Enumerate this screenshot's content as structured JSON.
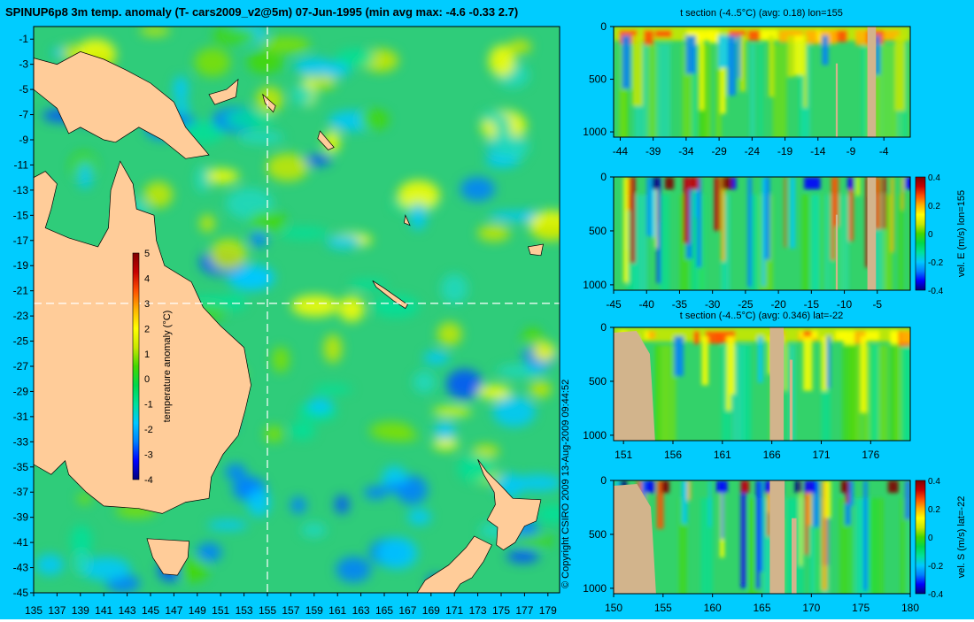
{
  "page": {
    "background": "#00ccff",
    "copyright": "© Copyright CSIRO 2009   13-Aug-2009 09:44:52"
  },
  "colormap": [
    "#00007a",
    "#0000ff",
    "#007fff",
    "#00c8ff",
    "#00e09a",
    "#00d84a",
    "#44d800",
    "#c8e800",
    "#ffff00",
    "#ffb400",
    "#ff5000",
    "#c80000",
    "#800000"
  ],
  "colors": {
    "land": "#ffcc99",
    "section_land": "#d2b48c",
    "ocean_base": "#2fcc7a",
    "crosshair": "#ffffff"
  },
  "chart_data": [
    {
      "type": "heatmap",
      "title": "SPINUP6p8 3m temp. anomaly (T- cars2009_v2@5m) 07-Jun-1995 (min avg max: -4.6 -0.33 2.7)",
      "xlabel": "",
      "ylabel": "",
      "xlim": [
        135,
        180
      ],
      "ylim": [
        -45,
        0
      ],
      "x_ticks": [
        "135",
        "137",
        "139",
        "141",
        "143",
        "145",
        "147",
        "149",
        "151",
        "153",
        "155",
        "157",
        "159",
        "161",
        "163",
        "165",
        "167",
        "169",
        "171",
        "173",
        "175",
        "177",
        "179"
      ],
      "y_ticks": [
        "-1",
        "-3",
        "-5",
        "-7",
        "-9",
        "-11",
        "-13",
        "-15",
        "-17",
        "-19",
        "-21",
        "-23",
        "-25",
        "-27",
        "-29",
        "-31",
        "-33",
        "-35",
        "-37",
        "-39",
        "-41",
        "-43",
        "-45"
      ],
      "stats": {
        "min": -4.6,
        "avg": -0.33,
        "max": 2.7
      },
      "crosshair": {
        "lon": 155,
        "lat": -22
      },
      "colorbar": {
        "label": "temperature anomaly (°C)",
        "min": -4,
        "max": 5,
        "ticks": [
          "5",
          "4",
          "3",
          "2",
          "1",
          "0",
          "-1",
          "-2",
          "-3",
          "-4"
        ]
      }
    },
    {
      "type": "heatmap",
      "title": "t section (-4..5°C) (avg: 0.18) lon=155",
      "xlim": [
        -45,
        0
      ],
      "ylim": [
        1050,
        0
      ],
      "x_ticks": [
        "-44",
        "-39",
        "-34",
        "-29",
        "-24",
        "-19",
        "-14",
        "-9",
        "-4"
      ],
      "y_ticks": [
        "0",
        "500",
        "1000"
      ],
      "avg": 0.18
    },
    {
      "type": "heatmap",
      "title": "",
      "xlim": [
        -45,
        0
      ],
      "ylim": [
        1050,
        0
      ],
      "x_ticks": [
        "-45",
        "-40",
        "-35",
        "-30",
        "-25",
        "-20",
        "-15",
        "-10",
        "-5"
      ],
      "y_ticks": [
        "0",
        "500",
        "1000"
      ],
      "colorbar": {
        "label": "vel. E (m/s) lon=155",
        "min": -0.4,
        "max": 0.4,
        "ticks": [
          "0.4",
          "0.2",
          "0",
          "-0.2",
          "-0.4"
        ]
      }
    },
    {
      "type": "heatmap",
      "title": "t section (-4..5°C) (avg: 0.346) lat=-22",
      "xlim": [
        150,
        180
      ],
      "ylim": [
        1050,
        0
      ],
      "x_ticks": [
        "151",
        "156",
        "161",
        "166",
        "171",
        "176"
      ],
      "y_ticks": [
        "0",
        "500",
        "1000"
      ],
      "avg": 0.346
    },
    {
      "type": "heatmap",
      "title": "",
      "xlim": [
        150,
        180
      ],
      "ylim": [
        1050,
        0
      ],
      "x_ticks": [
        "150",
        "155",
        "160",
        "165",
        "170",
        "175",
        "180"
      ],
      "y_ticks": [
        "0",
        "500",
        "1000"
      ],
      "colorbar": {
        "label": "vel. S (m/s) lat=-22",
        "min": -0.4,
        "max": 0.4,
        "ticks": [
          "0.4",
          "0.2",
          "0",
          "-0.2",
          "-0.4"
        ]
      }
    }
  ]
}
